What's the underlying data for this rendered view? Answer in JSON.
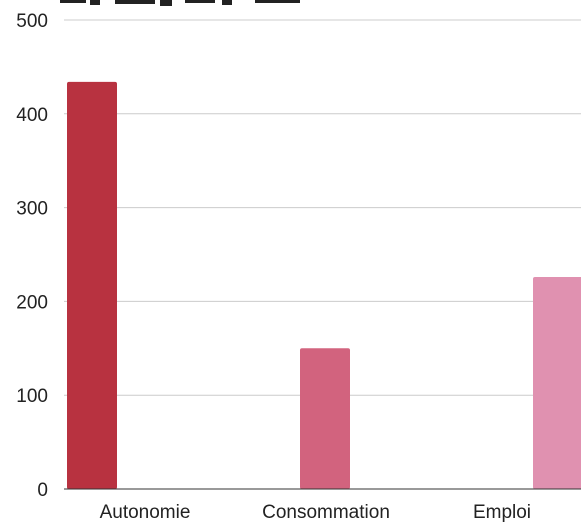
{
  "chart_data": {
    "type": "bar",
    "title": "",
    "xlabel": "",
    "ylabel": "",
    "categories": [
      "Autonomie",
      "Consommation",
      "Emploi"
    ],
    "values": [
      434,
      150,
      226
    ],
    "colors": [
      "#b83240",
      "#d2637e",
      "#e091b0"
    ],
    "ylim": [
      0,
      500
    ],
    "yticks": [
      "0",
      "100",
      "200",
      "300",
      "400",
      "500"
    ],
    "grid": true,
    "legend": "none"
  }
}
